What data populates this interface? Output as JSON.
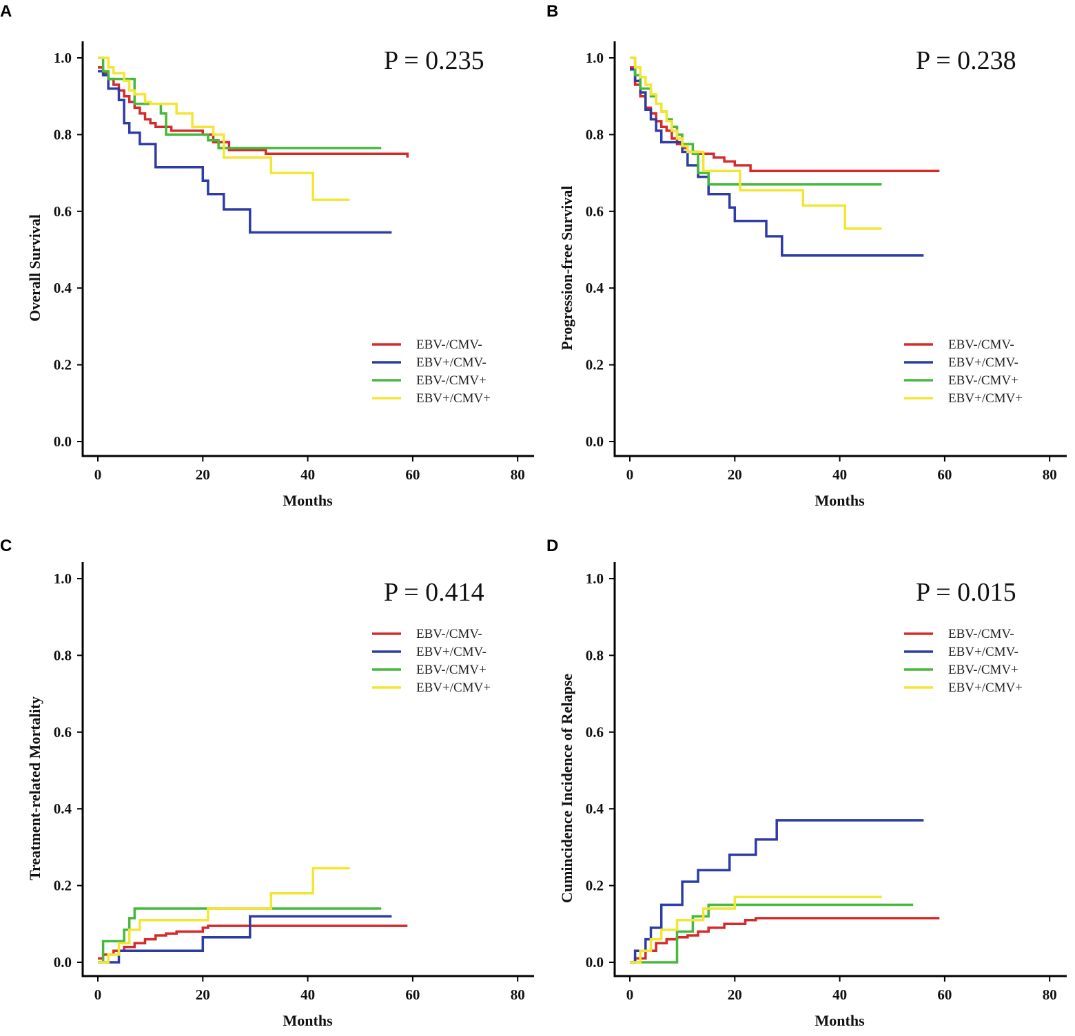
{
  "figure": {
    "legend_labels": [
      "EBV-/CMV-",
      "EBV+/CMV-",
      "EBV-/CMV+",
      "EBV+/CMV+"
    ],
    "series_colors": [
      "#d62a2a",
      "#2c3ba6",
      "#46b93c",
      "#f3e632"
    ]
  },
  "chart_data": [
    {
      "panel": "A",
      "type": "line",
      "step": true,
      "ylabel": "Overall Survival",
      "xlabel": "Months",
      "p_value": "P = 0.235",
      "xlim": [
        0,
        80
      ],
      "ylim": [
        0,
        1
      ],
      "xticks": [
        "0",
        "20",
        "40",
        "60",
        "80"
      ],
      "yticks": [
        "0.0",
        "0.2",
        "0.4",
        "0.6",
        "0.8",
        "1.0"
      ],
      "legend_position": "bottom-right",
      "series": [
        {
          "name": "EBV-/CMV-",
          "x": [
            0,
            1,
            2,
            3,
            4,
            5,
            6,
            7,
            8,
            9,
            10,
            11,
            14,
            20,
            22,
            25,
            32,
            59
          ],
          "y": [
            0.975,
            0.96,
            0.945,
            0.93,
            0.915,
            0.9,
            0.885,
            0.87,
            0.855,
            0.84,
            0.83,
            0.82,
            0.81,
            0.8,
            0.78,
            0.76,
            0.75,
            0.74
          ]
        },
        {
          "name": "EBV+/CMV-",
          "x": [
            0,
            1,
            2,
            4,
            5,
            6,
            8,
            11,
            20,
            21,
            24,
            29,
            56
          ],
          "y": [
            0.965,
            0.955,
            0.92,
            0.89,
            0.83,
            0.805,
            0.775,
            0.715,
            0.68,
            0.645,
            0.605,
            0.545,
            0.545
          ]
        },
        {
          "name": "EBV-/CMV+",
          "x": [
            0,
            1,
            2,
            7,
            12,
            13,
            17,
            21,
            23,
            54
          ],
          "y": [
            1.0,
            0.965,
            0.945,
            0.88,
            0.855,
            0.8,
            0.8,
            0.785,
            0.765,
            0.765
          ]
        },
        {
          "name": "EBV+/CMV+",
          "x": [
            0,
            2,
            3,
            5,
            6,
            7,
            9,
            10,
            15,
            18,
            22,
            24,
            33,
            41,
            48
          ],
          "y": [
            1.0,
            0.975,
            0.96,
            0.94,
            0.915,
            0.905,
            0.885,
            0.88,
            0.855,
            0.82,
            0.8,
            0.74,
            0.7,
            0.63,
            0.63
          ]
        }
      ]
    },
    {
      "panel": "B",
      "type": "line",
      "step": true,
      "ylabel": "Progression-free Survival",
      "xlabel": "Months",
      "p_value": "P = 0.238",
      "xlim": [
        0,
        80
      ],
      "ylim": [
        0,
        1
      ],
      "xticks": [
        "0",
        "20",
        "40",
        "60",
        "80"
      ],
      "yticks": [
        "0.0",
        "0.2",
        "0.4",
        "0.6",
        "0.8",
        "1.0"
      ],
      "legend_position": "bottom-right",
      "series": [
        {
          "name": "EBV-/CMV-",
          "x": [
            0,
            1,
            2,
            3,
            4,
            5,
            6,
            7,
            8,
            9,
            10,
            11,
            13,
            16,
            18,
            20,
            23,
            59
          ],
          "y": [
            0.975,
            0.93,
            0.9,
            0.87,
            0.855,
            0.835,
            0.82,
            0.81,
            0.79,
            0.775,
            0.765,
            0.755,
            0.75,
            0.74,
            0.73,
            0.72,
            0.705,
            0.705
          ]
        },
        {
          "name": "EBV+/CMV-",
          "x": [
            0,
            1,
            2,
            3,
            4,
            5,
            6,
            10,
            11,
            13,
            15,
            19,
            20,
            26,
            29,
            56
          ],
          "y": [
            0.97,
            0.94,
            0.91,
            0.865,
            0.84,
            0.81,
            0.78,
            0.755,
            0.72,
            0.69,
            0.645,
            0.61,
            0.575,
            0.535,
            0.485,
            0.485
          ]
        },
        {
          "name": "EBV-/CMV+",
          "x": [
            0,
            1,
            2,
            4,
            5,
            6,
            7,
            8,
            9,
            10,
            12,
            13,
            15,
            48
          ],
          "y": [
            1.0,
            0.955,
            0.92,
            0.9,
            0.88,
            0.86,
            0.84,
            0.82,
            0.8,
            0.775,
            0.75,
            0.7,
            0.67,
            0.67
          ]
        },
        {
          "name": "EBV+/CMV+",
          "x": [
            0,
            1,
            2,
            3,
            4,
            5,
            6,
            7,
            8,
            9,
            10,
            11,
            14,
            21,
            33,
            41,
            48
          ],
          "y": [
            1.0,
            0.975,
            0.95,
            0.93,
            0.905,
            0.88,
            0.86,
            0.835,
            0.81,
            0.79,
            0.77,
            0.755,
            0.705,
            0.655,
            0.615,
            0.555,
            0.555
          ]
        }
      ]
    },
    {
      "panel": "C",
      "type": "line",
      "step": true,
      "ylabel": "Treatment-related Mortality",
      "xlabel": "Months",
      "p_value": "P = 0.414",
      "xlim": [
        0,
        80
      ],
      "ylim": [
        0,
        1
      ],
      "xticks": [
        "0",
        "20",
        "40",
        "60",
        "80"
      ],
      "yticks": [
        "0.0",
        "0.2",
        "0.4",
        "0.6",
        "0.8",
        "1.0"
      ],
      "legend_position": "top-right",
      "series": [
        {
          "name": "EBV-/CMV-",
          "x": [
            0,
            1,
            3,
            5,
            7,
            9,
            11,
            13,
            15,
            20,
            21,
            59
          ],
          "y": [
            0.01,
            0.02,
            0.03,
            0.04,
            0.05,
            0.06,
            0.07,
            0.075,
            0.08,
            0.09,
            0.095,
            0.095
          ]
        },
        {
          "name": "EBV+/CMV-",
          "x": [
            0,
            2,
            4,
            20,
            24,
            29,
            56
          ],
          "y": [
            0.0,
            0.0,
            0.03,
            0.065,
            0.065,
            0.12,
            0.12
          ]
        },
        {
          "name": "EBV-/CMV+",
          "x": [
            0,
            1,
            4,
            5,
            6,
            7,
            21,
            54
          ],
          "y": [
            0.0,
            0.055,
            0.055,
            0.085,
            0.115,
            0.14,
            0.14,
            0.14
          ]
        },
        {
          "name": "EBV+/CMV+",
          "x": [
            0,
            2,
            4,
            6,
            8,
            21,
            33,
            41,
            48
          ],
          "y": [
            0.0,
            0.02,
            0.05,
            0.085,
            0.11,
            0.14,
            0.18,
            0.245,
            0.245
          ]
        }
      ]
    },
    {
      "panel": "D",
      "type": "line",
      "step": true,
      "ylabel": "Cumincidence Incidence of Relapse",
      "xlabel": "Months",
      "p_value": "P = 0.015",
      "xlim": [
        0,
        80
      ],
      "ylim": [
        0,
        1
      ],
      "xticks": [
        "0",
        "20",
        "40",
        "60",
        "80"
      ],
      "yticks": [
        "0.0",
        "0.2",
        "0.4",
        "0.6",
        "0.8",
        "1.0"
      ],
      "legend_position": "top-right",
      "series": [
        {
          "name": "EBV-/CMV-",
          "x": [
            0,
            1,
            3,
            5,
            7,
            9,
            11,
            13,
            15,
            18,
            22,
            24,
            59
          ],
          "y": [
            0.0,
            0.01,
            0.03,
            0.05,
            0.06,
            0.065,
            0.07,
            0.08,
            0.09,
            0.1,
            0.11,
            0.115,
            0.115
          ]
        },
        {
          "name": "EBV+/CMV-",
          "x": [
            0,
            1,
            3,
            4,
            6,
            10,
            13,
            19,
            24,
            28,
            56
          ],
          "y": [
            0.0,
            0.03,
            0.06,
            0.09,
            0.15,
            0.21,
            0.24,
            0.28,
            0.32,
            0.37,
            0.37
          ]
        },
        {
          "name": "EBV-/CMV+",
          "x": [
            0,
            9,
            12,
            15,
            54
          ],
          "y": [
            0.0,
            0.08,
            0.12,
            0.15,
            0.15
          ]
        },
        {
          "name": "EBV+/CMV+",
          "x": [
            0,
            2,
            4,
            6,
            9,
            14,
            20,
            48
          ],
          "y": [
            0.0,
            0.03,
            0.06,
            0.085,
            0.11,
            0.14,
            0.17,
            0.17
          ]
        }
      ]
    }
  ]
}
